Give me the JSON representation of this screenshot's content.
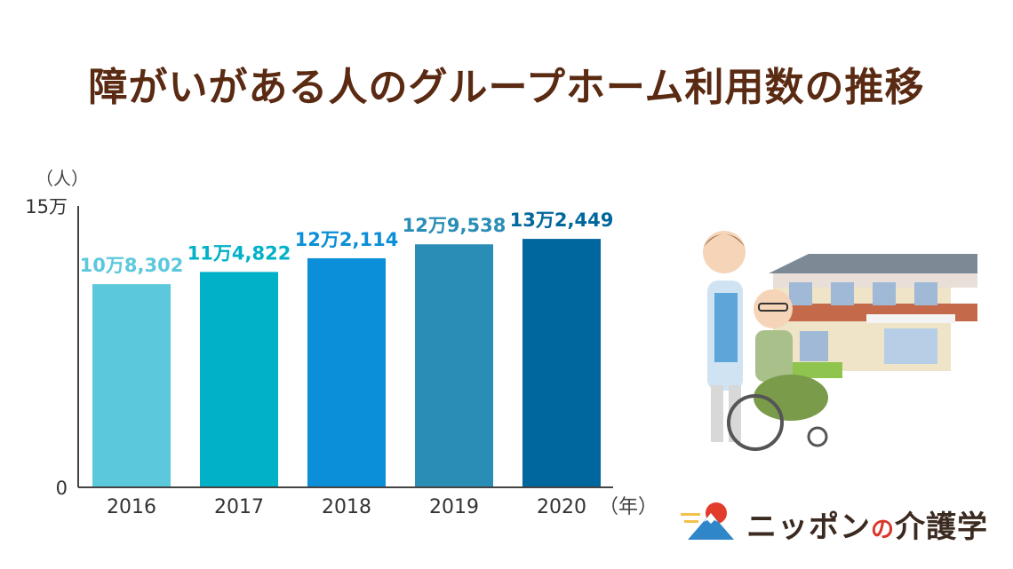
{
  "title": "障がいがある人のグループホーム利用数の推移",
  "logo": {
    "part1": "ニッポン",
    "part2": "の",
    "part3": "介護学"
  },
  "colors": {
    "title": "#5a2a12",
    "axis": "#444444",
    "bars": [
      "#5bc8dc",
      "#00b1c7",
      "#0a8fd8",
      "#2a8db5",
      "#00679e"
    ]
  },
  "chart_data": {
    "type": "bar",
    "categories": [
      "2016",
      "2017",
      "2018",
      "2019",
      "2020"
    ],
    "values": [
      108302,
      114822,
      122114,
      129538,
      132449
    ],
    "data_labels": [
      "10万8,302",
      "11万4,822",
      "12万2,114",
      "12万9,538",
      "13万2,449"
    ],
    "y_unit": "（人）",
    "x_unit": "（年）",
    "ylim": [
      0,
      150000
    ],
    "y_ticks": [
      {
        "value": 0,
        "label": "0"
      },
      {
        "value": 150000,
        "label": "15万"
      }
    ],
    "grid": false
  }
}
